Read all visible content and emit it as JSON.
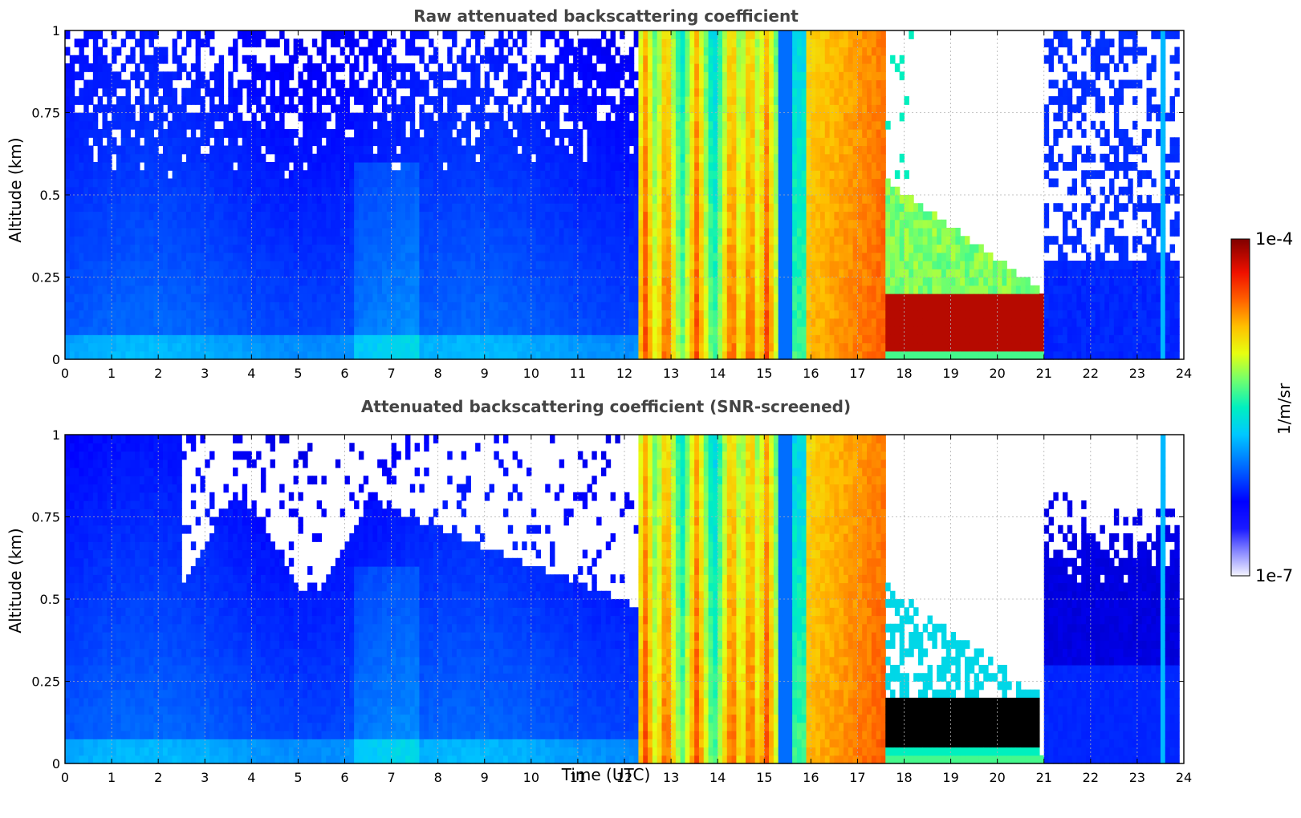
{
  "figure": {
    "xlabel": "Time (UTC)",
    "colorbar": {
      "label": "1/m/sr",
      "max_label": "1e-4",
      "min_label": "1e-7",
      "scale": "log",
      "colormap": "jet"
    }
  },
  "chart_data": [
    {
      "type": "heatmap",
      "title": "Raw attenuated backscattering coefficient",
      "xlabel": "",
      "ylabel": "Altitude (km)",
      "xlim": [
        0,
        24
      ],
      "ylim": [
        0,
        1
      ],
      "xticks": [
        "0",
        "1",
        "2",
        "3",
        "4",
        "5",
        "6",
        "7",
        "8",
        "9",
        "10",
        "11",
        "12",
        "13",
        "14",
        "15",
        "16",
        "17",
        "18",
        "19",
        "20",
        "21",
        "22",
        "23",
        "24"
      ],
      "yticks": [
        "0",
        "0.25",
        "0.5",
        "0.75",
        "1"
      ],
      "grid": true,
      "time_segments_utc": [
        {
          "start": 0.0,
          "end": 12.3,
          "regime": "clear air, weak aerosol signal, noisy above ~0.5 km"
        },
        {
          "start": 12.3,
          "end": 15.9,
          "regime": "vertical high-backscatter columns (precipitation)"
        },
        {
          "start": 15.9,
          "end": 17.5,
          "regime": "strong backscatter through full column"
        },
        {
          "start": 17.5,
          "end": 21.0,
          "regime": "low fog/cloud layer below ~0.25 km, peak near 1e-4"
        },
        {
          "start": 21.0,
          "end": 23.8,
          "regime": "weak signal, noise above ~0.3 km"
        }
      ]
    },
    {
      "type": "heatmap",
      "title": "Attenuated backscattering coefficient (SNR-screened)",
      "xlabel": "Time (UTC)",
      "ylabel": "Altitude (km)",
      "xlim": [
        0,
        24
      ],
      "ylim": [
        0,
        1
      ],
      "xticks": [
        "0",
        "1",
        "2",
        "3",
        "4",
        "5",
        "6",
        "7",
        "8",
        "9",
        "10",
        "11",
        "12",
        "13",
        "14",
        "15",
        "16",
        "17",
        "18",
        "19",
        "20",
        "21",
        "22",
        "23",
        "24"
      ],
      "yticks": [
        "0",
        "0.25",
        "0.5",
        "0.75",
        "1"
      ],
      "grid": true,
      "screened_out": "white (no data) where signal-to-noise is too low; saturated values shown black"
    }
  ]
}
